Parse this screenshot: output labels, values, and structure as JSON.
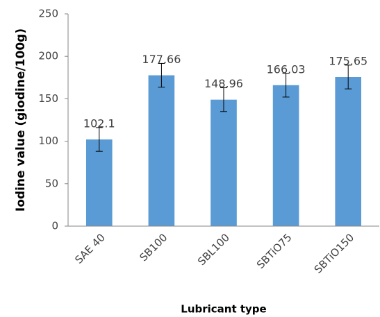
{
  "chart_data": {
    "type": "bar",
    "categories": [
      "SAE 40",
      "SB100",
      "SBL100",
      "SBTiO75",
      "SBTiO150"
    ],
    "values": [
      102.1,
      177.66,
      148.96,
      166.03,
      175.65
    ],
    "errors": [
      14,
      14,
      14,
      14,
      14
    ],
    "color": "#5b9bd5",
    "y_label": "Iodine value (giodine/100g)",
    "x_label": "Lubricant type",
    "ylim": [
      0,
      250
    ],
    "yticks": [
      0,
      50,
      100,
      150,
      200,
      250
    ],
    "grid": false
  }
}
